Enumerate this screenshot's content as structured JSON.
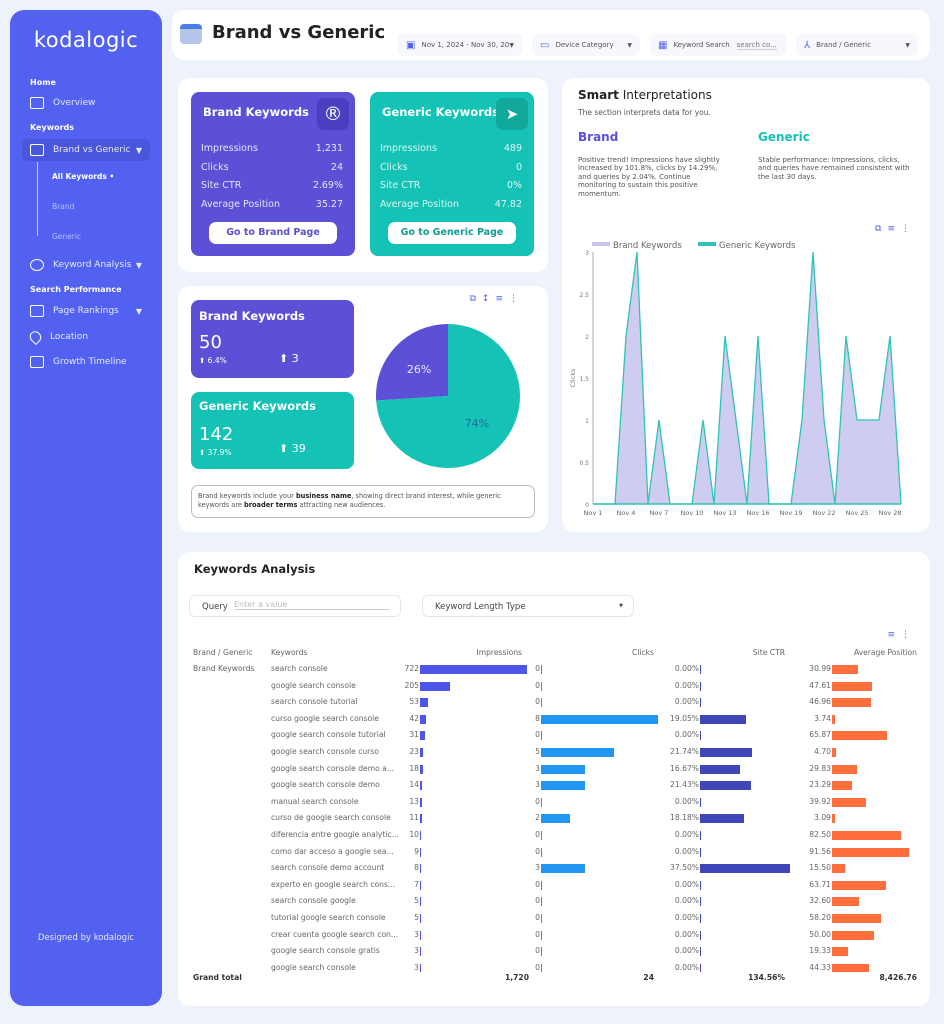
{
  "sidebar": {
    "logo": "kodalogic",
    "sections": [
      "Home",
      "Keywords",
      "Search Performance"
    ],
    "items": {
      "overview": "Overview",
      "brand_vs_generic": "Brand vs Generic",
      "keyword_analysis": "Keyword Analysis",
      "page_rankings": "Page Rankings",
      "location": "Location",
      "growth_timeline": "Growth Timeline"
    },
    "subitems": [
      "All Keywords •",
      "Brand",
      "Generic"
    ],
    "footer": "Designed by kodalogic"
  },
  "header": {
    "title": "Brand vs Generic",
    "date_range": "Nov 1, 2024 - Nov 30, 20",
    "device": "Device Category",
    "keyword_search_label": "Keyword Search",
    "keyword_search_placeholder": "search co...",
    "brand_generic": "Brand / Generic"
  },
  "brand_card": {
    "title": "Brand Keywords",
    "rows": [
      [
        "Impressions",
        "1,231"
      ],
      [
        "Clicks",
        "24"
      ],
      [
        "Site CTR",
        "2.69%"
      ],
      [
        "Average Position",
        "35.27"
      ]
    ],
    "button": "Go to Brand Page"
  },
  "generic_card": {
    "title": "Generic Keywords",
    "rows": [
      [
        "Impressions",
        "489"
      ],
      [
        "Clicks",
        "0"
      ],
      [
        "Site CTR",
        "0%"
      ],
      [
        "Average Position",
        "47.82"
      ]
    ],
    "button": "Go to Generic Page"
  },
  "counts": {
    "brand": {
      "title": "Brand Keywords",
      "value": "50",
      "pct": "6.4%",
      "delta": "3"
    },
    "generic": {
      "title": "Generic Keywords",
      "value": "142",
      "pct": "37.9%",
      "delta": "39"
    }
  },
  "pie": {
    "slices": [
      {
        "name": "Brand Keywords",
        "value": 26,
        "label": "26%",
        "color": "#5b50d6"
      },
      {
        "name": "Generic Keywords",
        "value": 74,
        "label": "74%",
        "color": "#14c3b5"
      }
    ]
  },
  "note": {
    "a": "Brand keywords include your ",
    "b": "business name",
    "c": ", showing direct brand interest, while generic keywords are ",
    "d": "broader terms",
    "e": " attracting new audiences."
  },
  "smart": {
    "title_bold": "Smart",
    "title_rest": " Interpretations",
    "subtitle": "The section interprets data for you.",
    "brand_head": "Brand",
    "brand_text": "Positive trend! Impressions have slightly increased by 101.8%, clicks by 14.29%, and queries by 2.04%. Continue monitoring to sustain this positive momentum.",
    "generic_head": "Generic",
    "generic_text": "Stable performance: Impressions, clicks, and queries have remained consistent with the last 30 days."
  },
  "chart_data": {
    "type": "area",
    "ylabel": "Clicks",
    "ylim": [
      0,
      3
    ],
    "yticks": [
      "0",
      "0.5",
      "1",
      "1.5",
      "2",
      "2.5",
      "3"
    ],
    "xticks": [
      "Nov 1",
      "Nov 4",
      "Nov 7",
      "Nov 10",
      "Nov 13",
      "Nov 16",
      "Nov 19",
      "Nov 22",
      "Nov 25",
      "Nov 28"
    ],
    "x": [
      "Nov 1",
      "Nov 2",
      "Nov 3",
      "Nov 4",
      "Nov 5",
      "Nov 6",
      "Nov 7",
      "Nov 8",
      "Nov 9",
      "Nov 10",
      "Nov 11",
      "Nov 12",
      "Nov 13",
      "Nov 14",
      "Nov 15",
      "Nov 16",
      "Nov 17",
      "Nov 18",
      "Nov 19",
      "Nov 20",
      "Nov 21",
      "Nov 22",
      "Nov 23",
      "Nov 24",
      "Nov 25",
      "Nov 26",
      "Nov 27",
      "Nov 28",
      "Nov 29"
    ],
    "series": [
      {
        "name": "Brand Keywords",
        "color": "#c9c6f0",
        "values": [
          0,
          0,
          0,
          2,
          3,
          0,
          1,
          0,
          0,
          0,
          1,
          0,
          2,
          1,
          0,
          2,
          0,
          0,
          0,
          1,
          3,
          1,
          0,
          2,
          1,
          1,
          1,
          2,
          0
        ]
      },
      {
        "name": "Generic Keywords",
        "color": "#2ec4b6",
        "values": [
          0,
          0,
          0,
          0,
          0,
          0,
          0,
          0,
          0,
          0,
          0,
          0,
          0,
          0,
          0,
          0,
          0,
          0,
          0,
          0,
          0,
          0,
          0,
          0,
          0,
          0,
          0,
          0,
          0
        ]
      }
    ],
    "legend": "top-left",
    "grid": false
  },
  "table": {
    "title": "Keywords Analysis",
    "query_label": "Query",
    "query_placeholder": "Enter a value",
    "length_type": "Keyword Length Type",
    "headers": [
      "Brand / Generic",
      "Keywords",
      "Impressions",
      "Clicks",
      "Site CTR",
      "Average Position"
    ],
    "group": "Brand Keywords",
    "rows": [
      [
        "search console",
        722,
        0,
        "0.00%",
        30.99
      ],
      [
        "google search console",
        205,
        0,
        "0.00%",
        47.61
      ],
      [
        "search console tutorial",
        53,
        0,
        "0.00%",
        46.96
      ],
      [
        "curso google search console",
        42,
        8,
        "19.05%",
        3.74
      ],
      [
        "google search console tutorial",
        31,
        0,
        "0.00%",
        65.87
      ],
      [
        "google search console curso",
        23,
        5,
        "21.74%",
        4.7
      ],
      [
        "google search console demo a...",
        18,
        3,
        "16.67%",
        29.83
      ],
      [
        "google search console demo",
        14,
        3,
        "21.43%",
        23.29
      ],
      [
        "manual search console",
        13,
        0,
        "0.00%",
        39.92
      ],
      [
        "curso de google search console",
        11,
        2,
        "18.18%",
        3.09
      ],
      [
        "diferencia entre google analytic...",
        10,
        0,
        "0.00%",
        82.5
      ],
      [
        "como dar acceso a google sea...",
        9,
        0,
        "0.00%",
        91.56
      ],
      [
        "search console demo account",
        8,
        3,
        "37.50%",
        15.5
      ],
      [
        "experto en google search cons...",
        7,
        0,
        "0.00%",
        63.71
      ],
      [
        "search console google",
        5,
        0,
        "0.00%",
        32.6
      ],
      [
        "tutorial google search console",
        5,
        0,
        "0.00%",
        58.2
      ],
      [
        "crear cuenta google search con...",
        3,
        0,
        "0.00%",
        50.0
      ],
      [
        "google search console gratis",
        3,
        0,
        "0.00%",
        19.33
      ],
      [
        "google search console",
        3,
        0,
        "0.00%",
        44.33
      ]
    ],
    "totals": {
      "label": "Grand total",
      "impressions": "1,720",
      "clicks": "24",
      "ctr": "134.56%",
      "position": "8,426.76"
    },
    "colors": {
      "impressions": "#4f55e8",
      "clicks": "#2196f3",
      "ctr": "#3f47b8",
      "position": "#ff6f3c"
    }
  }
}
